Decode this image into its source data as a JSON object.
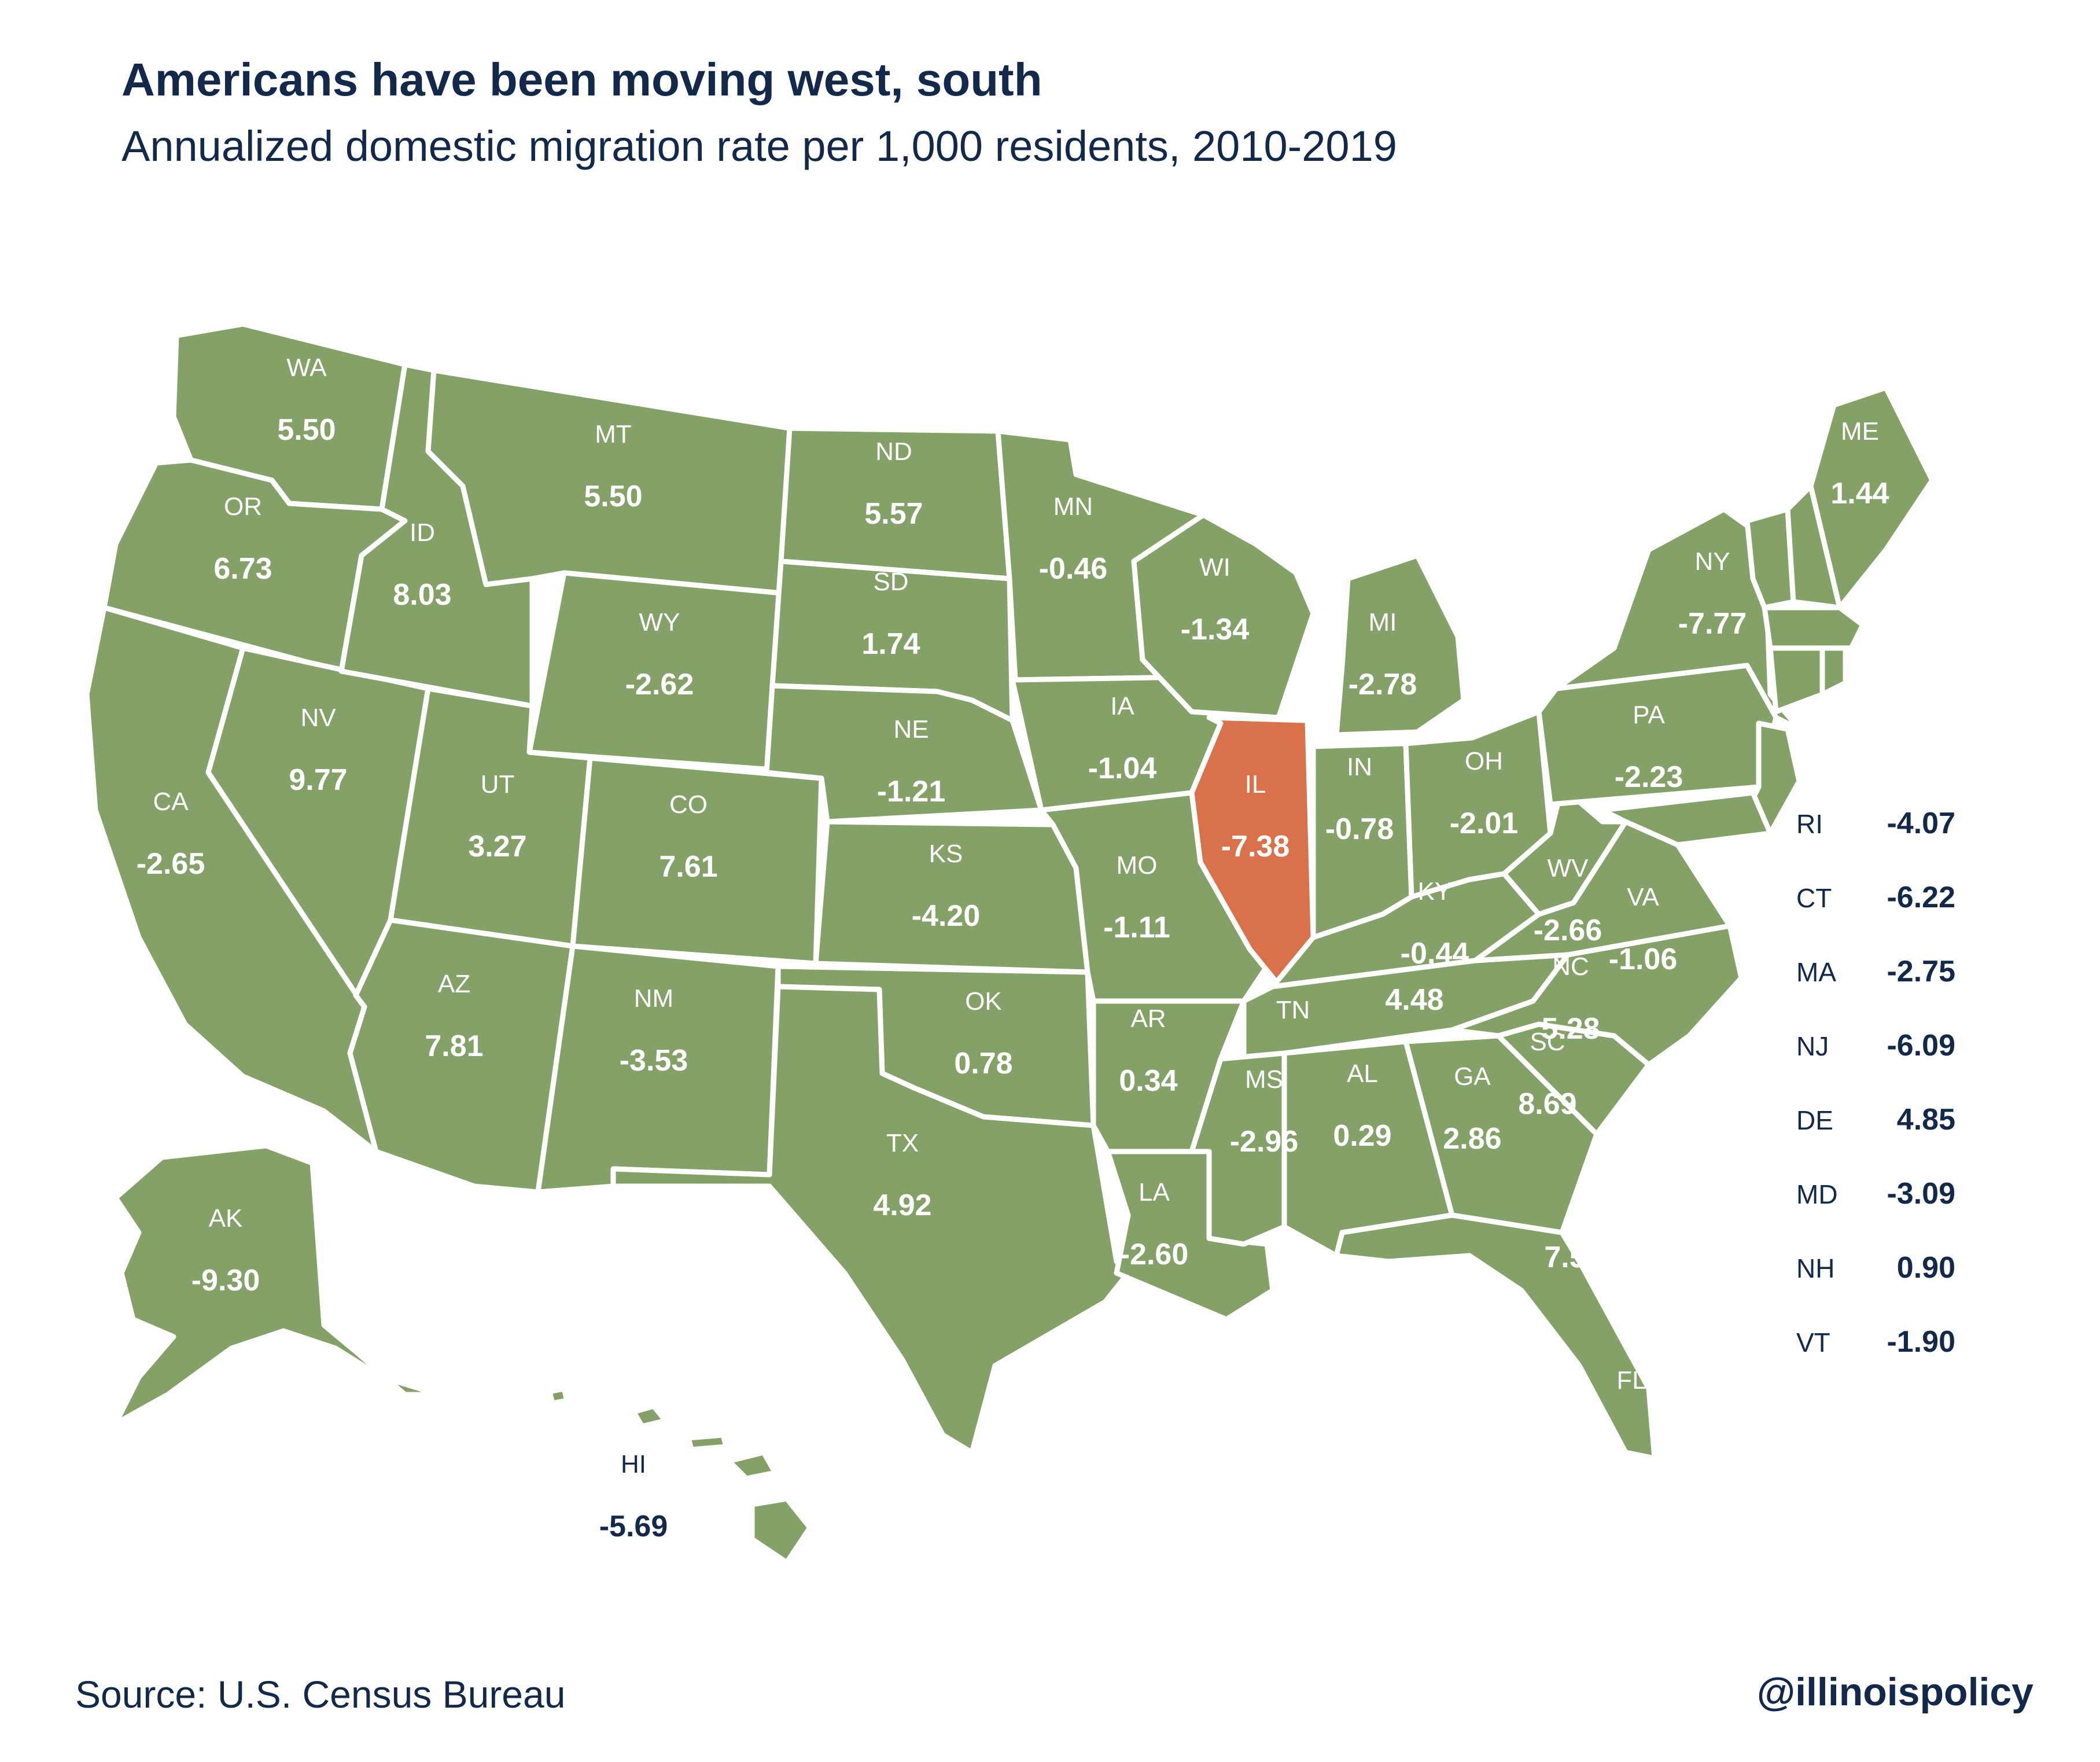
{
  "title": "Americans have been moving west, south",
  "subtitle": "Annualized domestic migration rate per 1,000 residents, 2010-2019",
  "source": "Source: U.S. Census Bureau",
  "handle": "@illinoispolicy",
  "colors": {
    "state_fill": "#84a267",
    "highlight_fill": "#d9714b",
    "border": "#ffffff",
    "ink": "#13294b"
  },
  "states": [
    {
      "abbr": "WA",
      "value": "5.50"
    },
    {
      "abbr": "OR",
      "value": "6.73"
    },
    {
      "abbr": "CA",
      "value": "-2.65"
    },
    {
      "abbr": "NV",
      "value": "9.77"
    },
    {
      "abbr": "ID",
      "value": "8.03"
    },
    {
      "abbr": "MT",
      "value": "5.50"
    },
    {
      "abbr": "WY",
      "value": "-2.62"
    },
    {
      "abbr": "UT",
      "value": "3.27"
    },
    {
      "abbr": "CO",
      "value": "7.61"
    },
    {
      "abbr": "AZ",
      "value": "7.81"
    },
    {
      "abbr": "NM",
      "value": "-3.53"
    },
    {
      "abbr": "ND",
      "value": "5.57"
    },
    {
      "abbr": "SD",
      "value": "1.74"
    },
    {
      "abbr": "NE",
      "value": "-1.21"
    },
    {
      "abbr": "KS",
      "value": "-4.20"
    },
    {
      "abbr": "OK",
      "value": "0.78"
    },
    {
      "abbr": "TX",
      "value": "4.92"
    },
    {
      "abbr": "MN",
      "value": "-0.46"
    },
    {
      "abbr": "IA",
      "value": "-1.04"
    },
    {
      "abbr": "MO",
      "value": "-1.11"
    },
    {
      "abbr": "AR",
      "value": "0.34"
    },
    {
      "abbr": "LA",
      "value": "-2.60"
    },
    {
      "abbr": "WI",
      "value": "-1.34"
    },
    {
      "abbr": "IL",
      "value": "-7.38"
    },
    {
      "abbr": "MI",
      "value": "-2.78"
    },
    {
      "abbr": "IN",
      "value": "-0.78"
    },
    {
      "abbr": "OH",
      "value": "-2.01"
    },
    {
      "abbr": "KY",
      "value": "-0.44"
    },
    {
      "abbr": "TN",
      "value": "4.48"
    },
    {
      "abbr": "MS",
      "value": "-2.96"
    },
    {
      "abbr": "AL",
      "value": "0.29"
    },
    {
      "abbr": "GA",
      "value": "2.86"
    },
    {
      "abbr": "FL",
      "value": "7.54"
    },
    {
      "abbr": "SC",
      "value": "8.69"
    },
    {
      "abbr": "NC",
      "value": "5.28"
    },
    {
      "abbr": "VA",
      "value": "-1.06"
    },
    {
      "abbr": "WV",
      "value": "-2.66"
    },
    {
      "abbr": "PA",
      "value": "-2.23"
    },
    {
      "abbr": "NY",
      "value": "-7.77"
    },
    {
      "abbr": "ME",
      "value": "1.44"
    },
    {
      "abbr": "AK",
      "value": "-9.30"
    },
    {
      "abbr": "HI",
      "value": "-5.69"
    }
  ],
  "side_list": [
    {
      "abbr": "RI",
      "value": "-4.07"
    },
    {
      "abbr": "CT",
      "value": "-6.22"
    },
    {
      "abbr": "MA",
      "value": "-2.75"
    },
    {
      "abbr": "NJ",
      "value": "-6.09"
    },
    {
      "abbr": "DE",
      "value": "4.85"
    },
    {
      "abbr": "MD",
      "value": "-3.09"
    },
    {
      "abbr": "NH",
      "value": "0.90"
    },
    {
      "abbr": "VT",
      "value": "-1.90"
    }
  ]
}
